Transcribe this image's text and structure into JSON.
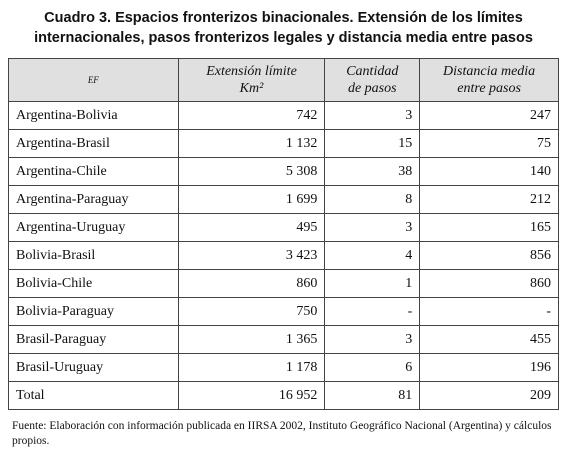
{
  "title": {
    "lines": [
      "Cuadro 3. Espacios fronterizos binacionales. Extensión de los límites",
      "internacionales, pasos fronterizos legales y distancia media entre pasos"
    ]
  },
  "table": {
    "header": [
      [
        "EF"
      ],
      [
        "Extensión límite",
        "Km²"
      ],
      [
        "Cantidad",
        "de pasos"
      ],
      [
        "Distancia media",
        "entre pasos"
      ]
    ],
    "rows": [
      [
        "Argentina-Bolivia",
        "742",
        "3",
        "247"
      ],
      [
        "Argentina-Brasil",
        "1 132",
        "15",
        "75"
      ],
      [
        "Argentina-Chile",
        "5 308",
        "38",
        "140"
      ],
      [
        "Argentina-Paraguay",
        "1 699",
        "8",
        "212"
      ],
      [
        "Argentina-Uruguay",
        "495",
        "3",
        "165"
      ],
      [
        "Bolivia-Brasil",
        "3 423",
        "4",
        "856"
      ],
      [
        "Bolivia-Chile",
        "860",
        "1",
        "860"
      ],
      [
        "Bolivia-Paraguay",
        "750",
        "-",
        "-"
      ],
      [
        "Brasil-Paraguay",
        "1 365",
        "3",
        "455"
      ],
      [
        "Brasil-Uruguay",
        "1 178",
        "6",
        "196"
      ],
      [
        "Total",
        "16 952",
        "81",
        "209"
      ]
    ]
  },
  "footnote": "Fuente: Elaboración con información publicada en IIRSA 2002, Instituto Geográfico Nacional (Argentina) y cálculos propios."
}
